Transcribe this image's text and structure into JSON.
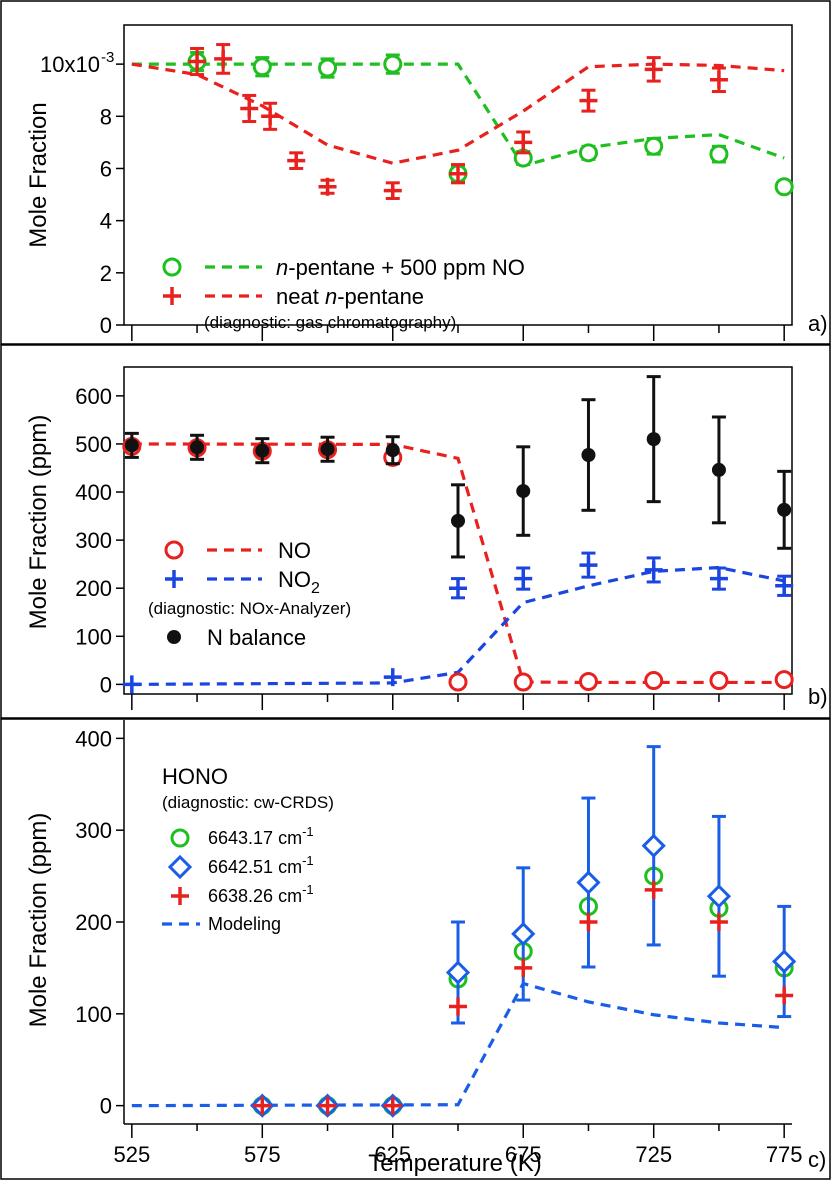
{
  "figure": {
    "x_axis_title": "Temperature (K)",
    "x_ticks": [
      "525",
      "575",
      "625",
      "675",
      "725",
      "775"
    ]
  },
  "chart_data": [
    {
      "type": "scatter",
      "panel_label": "a)",
      "ylabel": "Mole Fraction",
      "y_tick_labels": [
        "0",
        "2",
        "4",
        "6",
        "8",
        "10x10"
      ],
      "y_exponent_label": "-3",
      "ylim": [
        0,
        11.5
      ],
      "xlim": [
        522,
        778
      ],
      "scale": 0.001,
      "legend": {
        "entries": [
          {
            "ref": "pentane_no",
            "prefix": "",
            "italic": "n",
            "suffix": "-pentane + 500 ppm NO"
          },
          {
            "ref": "neat_pentane",
            "prefix": "neat ",
            "italic": "n",
            "suffix": "-pentane"
          }
        ],
        "note": "(diagnostic: gas chromatography)"
      },
      "series": [
        {
          "key": "pentane_no",
          "marker": "circle",
          "color": "#1fbf1f",
          "x": [
            550,
            575,
            600,
            625,
            650,
            675,
            700,
            725,
            750,
            775
          ],
          "y": [
            10.1,
            9.9,
            9.85,
            10.0,
            5.8,
            6.4,
            6.6,
            6.85,
            6.55,
            5.3
          ],
          "err": [
            0.35,
            0.35,
            0.35,
            0.35,
            0.25,
            0.25,
            0.25,
            0.3,
            0.3,
            0.0
          ]
        },
        {
          "key": "neat_pentane",
          "marker": "plus",
          "color": "#e8201e",
          "x": [
            550,
            560,
            570,
            578,
            588,
            600,
            625,
            650,
            675,
            700,
            725,
            750
          ],
          "y": [
            10.1,
            10.2,
            8.3,
            8.0,
            6.3,
            5.3,
            5.15,
            5.8,
            7.0,
            8.6,
            9.8,
            9.4
          ],
          "err": [
            0.5,
            0.55,
            0.5,
            0.5,
            0.3,
            0.25,
            0.3,
            0.35,
            0.4,
            0.4,
            0.45,
            0.45
          ]
        },
        {
          "key": "pentane_no_model",
          "line": "dash",
          "color": "#1fbf1f",
          "x": [
            525,
            650,
            675,
            700,
            725,
            750,
            775
          ],
          "y": [
            10.0,
            10.0,
            6.1,
            6.8,
            7.15,
            7.3,
            6.4
          ]
        },
        {
          "key": "neat_pentane_model",
          "line": "dash",
          "color": "#e8201e",
          "x": [
            525,
            550,
            575,
            600,
            625,
            650,
            675,
            700,
            725,
            750,
            775
          ],
          "y": [
            10.0,
            9.6,
            8.4,
            6.9,
            6.2,
            6.7,
            8.2,
            9.9,
            10.0,
            9.95,
            9.75
          ]
        }
      ]
    },
    {
      "type": "scatter",
      "panel_label": "b)",
      "ylabel": "Mole Fraction (ppm)",
      "y_tick_labels": [
        "0",
        "100",
        "200",
        "300",
        "400",
        "500",
        "600"
      ],
      "ylim": [
        -20,
        660
      ],
      "xlim": [
        522,
        778
      ],
      "scale": 1,
      "legend": {
        "entries": [
          {
            "ref": "no",
            "label": "NO"
          },
          {
            "ref": "no2",
            "label": "NO",
            "sub": "2"
          }
        ],
        "note": "(diagnostic: NOx-Analyzer)",
        "extra": {
          "ref": "n_balance",
          "label": "N balance"
        }
      },
      "series": [
        {
          "key": "no",
          "marker": "circle",
          "color": "#e8201e",
          "x": [
            525,
            550,
            575,
            600,
            625,
            650,
            675,
            700,
            725,
            750,
            775
          ],
          "y": [
            495,
            492,
            485,
            488,
            472,
            5,
            5,
            6,
            8,
            8,
            10
          ],
          "err": [
            0,
            0,
            0,
            0,
            0,
            0,
            0,
            0,
            0,
            0,
            0
          ]
        },
        {
          "key": "no2",
          "marker": "plus",
          "color": "#1a45e0",
          "x": [
            525,
            625,
            650,
            675,
            700,
            725,
            750,
            775
          ],
          "y": [
            0,
            15,
            200,
            220,
            248,
            238,
            220,
            205
          ],
          "err": [
            0,
            0,
            20,
            22,
            25,
            25,
            22,
            20
          ]
        },
        {
          "key": "n_balance",
          "marker": "dot",
          "color": "#111111",
          "x": [
            525,
            550,
            575,
            600,
            625,
            650,
            675,
            700,
            725,
            750,
            775
          ],
          "y": [
            497,
            493,
            486,
            489,
            487,
            340,
            402,
            477,
            510,
            446,
            363
          ],
          "err": [
            25,
            25,
            25,
            25,
            28,
            75,
            92,
            115,
            130,
            110,
            80
          ]
        },
        {
          "key": "no_model",
          "line": "dash",
          "color": "#e8201e",
          "x": [
            525,
            625,
            650,
            675,
            700,
            725,
            750,
            775
          ],
          "y": [
            500,
            499,
            470,
            5,
            4,
            4,
            4,
            4
          ]
        },
        {
          "key": "no2_model",
          "line": "dash",
          "color": "#1a45e0",
          "x": [
            525,
            625,
            650,
            675,
            700,
            725,
            750,
            775
          ],
          "y": [
            0,
            3,
            25,
            170,
            205,
            235,
            243,
            215
          ]
        }
      ]
    },
    {
      "type": "scatter",
      "panel_label": "c)",
      "ylabel": "Mole Fraction (ppm)",
      "y_tick_labels": [
        "0",
        "100",
        "200",
        "300",
        "400"
      ],
      "ylim": [
        -20,
        420
      ],
      "xlim": [
        522,
        778
      ],
      "scale": 1,
      "legend": {
        "title": "HONO",
        "note": "(diagnostic: cw-CRDS)",
        "entries": [
          {
            "ref": "hono_6643",
            "label": "6643.17 cm",
            "sup": "-1"
          },
          {
            "ref": "hono_6642",
            "label": "6642.51 cm",
            "sup": "-1"
          },
          {
            "ref": "hono_6638",
            "label": "6638.26 cm",
            "sup": "-1"
          },
          {
            "ref": "hono_model",
            "label": "Modeling"
          }
        ]
      },
      "series": [
        {
          "key": "hono_6643",
          "marker": "circle",
          "color": "#1fbf1f",
          "x": [
            575,
            600,
            625,
            650,
            675,
            700,
            725,
            750,
            775
          ],
          "y": [
            0,
            0,
            0,
            138,
            168,
            217,
            250,
            215,
            150
          ],
          "err": [
            0,
            0,
            0,
            0,
            0,
            0,
            0,
            0,
            0
          ]
        },
        {
          "key": "hono_6642",
          "marker": "diamond",
          "color": "#1a5ee8",
          "x": [
            575,
            600,
            625,
            650,
            675,
            700,
            725,
            750,
            775
          ],
          "y": [
            0,
            0,
            0,
            145,
            187,
            243,
            283,
            228,
            157
          ],
          "err": [
            0,
            0,
            0,
            55,
            72,
            92,
            108,
            87,
            60
          ]
        },
        {
          "key": "hono_6638",
          "marker": "plus",
          "color": "#e8201e",
          "x": [
            575,
            600,
            625,
            650,
            675,
            700,
            725,
            750,
            775
          ],
          "y": [
            0,
            0,
            0,
            108,
            150,
            200,
            235,
            200,
            120
          ],
          "err": [
            0,
            0,
            0,
            0,
            0,
            0,
            0,
            0,
            0
          ]
        },
        {
          "key": "hono_model",
          "line": "dash",
          "color": "#1a5ee8",
          "x": [
            525,
            650,
            675,
            700,
            725,
            750,
            775
          ],
          "y": [
            0,
            1,
            133,
            113,
            99,
            90,
            85
          ]
        }
      ]
    }
  ]
}
